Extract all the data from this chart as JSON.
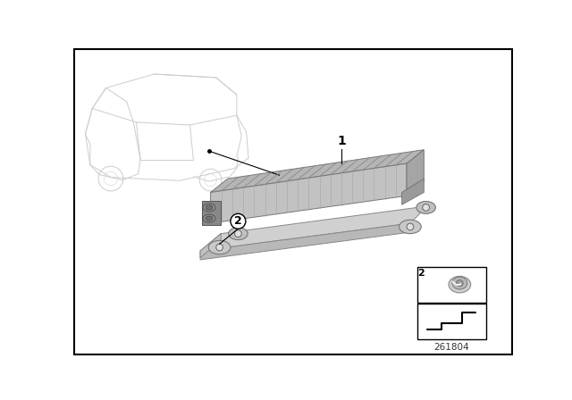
{
  "background_color": "#ffffff",
  "border_color": "#000000",
  "label1": "1",
  "label2": "2",
  "diagram_number": "261804",
  "figure_size": [
    6.4,
    4.48
  ],
  "dpi": 100,
  "unit_color_top": "#b8b8b8",
  "unit_color_front": "#c8c8c8",
  "unit_color_right": "#a8a8a8",
  "unit_color_base": "#d0d0d0",
  "fin_color": "#999999",
  "car_color": "#cccccc",
  "tab_color": "#c0c0c0",
  "tab_color_dark": "#aaaaaa"
}
